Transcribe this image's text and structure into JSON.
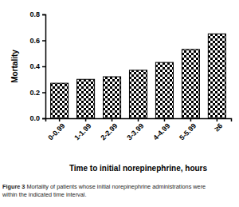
{
  "chart_data": {
    "type": "bar",
    "x_label": "Time to initial norepinephrine, hours",
    "y_label": "Mortality",
    "figure_label": "Figure 3",
    "caption": [
      "Mortality of patients whose initial norepinephrine administrations were",
      "within the indicated time interval."
    ],
    "categories": [
      "0-0.99",
      "1-1.99",
      "2-2.99",
      "3-3.99",
      "4-4.99",
      "5-5.99",
      "≥6"
    ],
    "values": [
      0.27,
      0.3,
      0.32,
      0.37,
      0.43,
      0.53,
      0.65
    ],
    "color": "#000000",
    "ylim": [
      0,
      0.8
    ],
    "yticks": [
      {
        "value": 0,
        "label": "0.0"
      },
      0.2,
      0.4,
      0.6,
      0.8
    ],
    "grid": false
  }
}
